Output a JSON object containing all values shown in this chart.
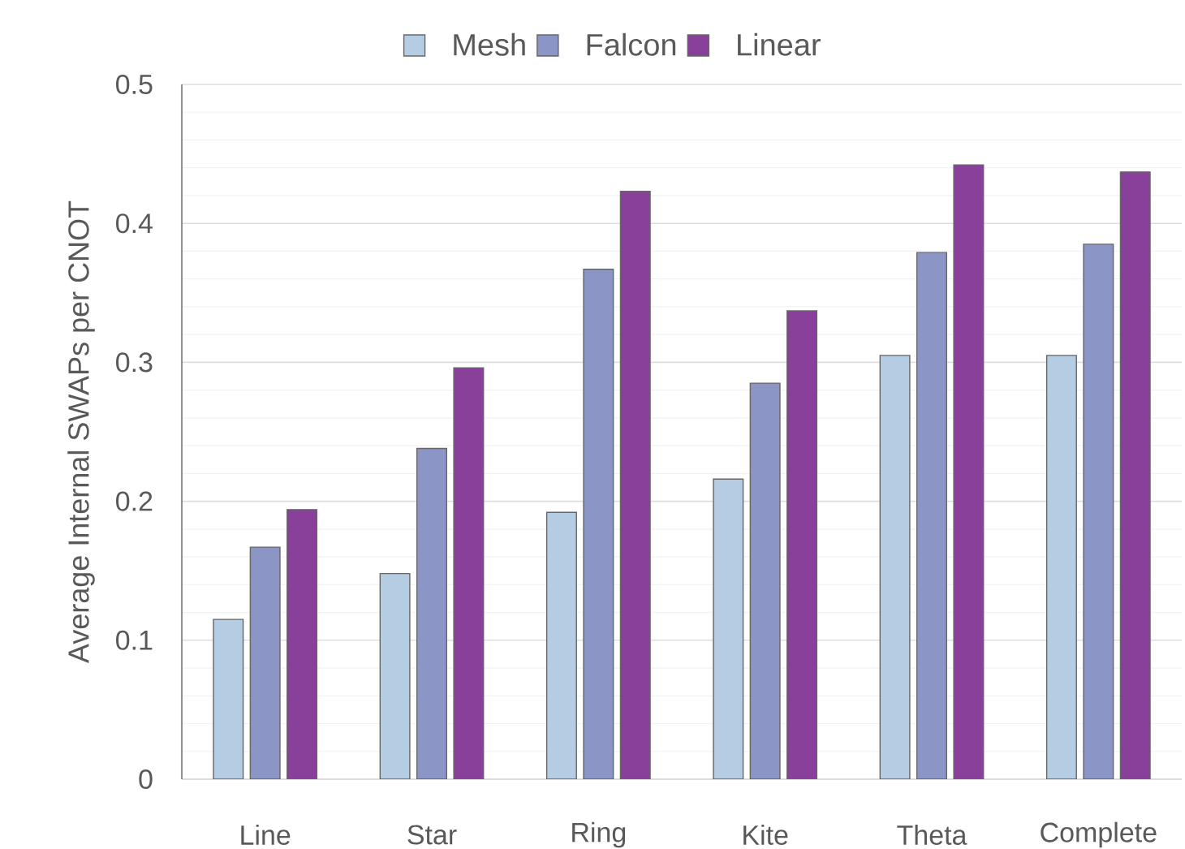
{
  "chart_data": {
    "type": "bar",
    "ylabel": "Average Internal SWAPs per CNOT",
    "categories": [
      "Line",
      "Star",
      "Ring",
      "Kite",
      "Theta",
      "Complete"
    ],
    "series": [
      {
        "name": "Mesh",
        "color": "#b4cde2",
        "values": [
          0.115,
          0.148,
          0.192,
          0.216,
          0.305,
          0.305
        ]
      },
      {
        "name": "Falcon",
        "color": "#8b96c6",
        "values": [
          0.167,
          0.238,
          0.367,
          0.285,
          0.379,
          0.385
        ]
      },
      {
        "name": "Linear",
        "color": "#88409a",
        "values": [
          0.194,
          0.296,
          0.423,
          0.337,
          0.442,
          0.437
        ]
      }
    ],
    "ylim": [
      0,
      0.5
    ],
    "yticks": [
      0,
      0.1,
      0.2,
      0.3,
      0.4,
      0.5
    ],
    "grid": "y",
    "legend": "top"
  }
}
